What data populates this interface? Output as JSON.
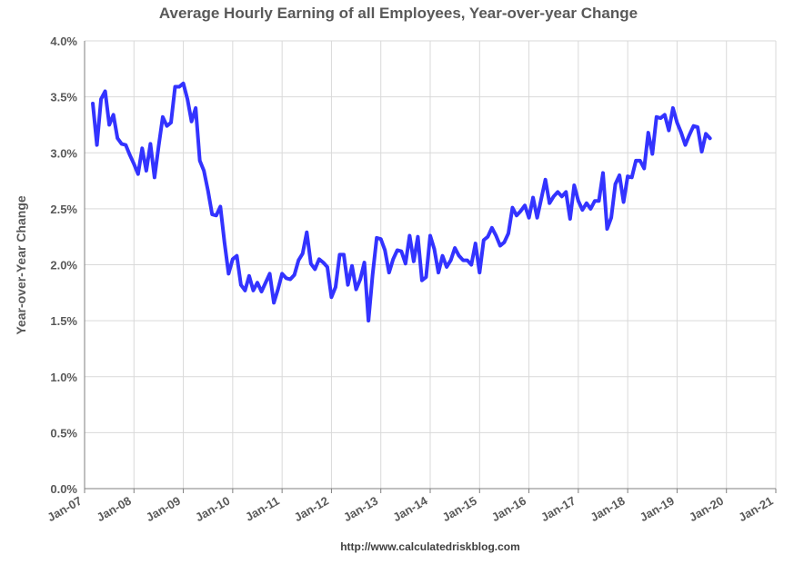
{
  "chart_data": {
    "type": "line",
    "title": "Average Hourly Earning of all Employees, Year-over-year Change",
    "ylabel": "Year-over-Year Change",
    "xlabel": "",
    "source": "http://www.calculatedriskblog.com",
    "x_ticks": [
      "Jan-07",
      "Jan-08",
      "Jan-09",
      "Jan-10",
      "Jan-11",
      "Jan-12",
      "Jan-13",
      "Jan-14",
      "Jan-15",
      "Jan-16",
      "Jan-17",
      "Jan-18",
      "Jan-19",
      "Jan-20",
      "Jan-21"
    ],
    "y_ticks": [
      "0.0%",
      "0.5%",
      "1.0%",
      "1.5%",
      "2.0%",
      "2.5%",
      "3.0%",
      "3.5%",
      "4.0%"
    ],
    "ylim": [
      0,
      4.0
    ],
    "xlim": [
      "2007-01",
      "2021-01"
    ],
    "grid": true,
    "colors": {
      "line": "#3333ff",
      "grid": "#d9d9d9",
      "axis": "#7f7f7f"
    },
    "series": [
      {
        "x_start": "2007-03",
        "frequency": "monthly",
        "values": [
          3.44,
          3.07,
          3.48,
          3.55,
          3.25,
          3.34,
          3.13,
          3.08,
          3.07,
          2.98,
          2.9,
          2.81,
          3.04,
          2.84,
          3.08,
          2.78,
          3.06,
          3.32,
          3.24,
          3.27,
          3.59,
          3.59,
          3.62,
          3.48,
          3.28,
          3.4,
          2.93,
          2.84,
          2.66,
          2.45,
          2.44,
          2.52,
          2.2,
          1.92,
          2.05,
          2.08,
          1.82,
          1.77,
          1.9,
          1.77,
          1.84,
          1.76,
          1.84,
          1.92,
          1.66,
          1.78,
          1.92,
          1.88,
          1.87,
          1.91,
          2.04,
          2.1,
          2.29,
          2.01,
          1.96,
          2.05,
          2.02,
          1.98,
          1.71,
          1.8,
          2.09,
          2.09,
          1.82,
          1.99,
          1.78,
          1.87,
          2.02,
          1.5,
          1.91,
          2.24,
          2.23,
          2.13,
          1.93,
          2.05,
          2.13,
          2.12,
          2.01,
          2.26,
          2.03,
          2.25,
          1.86,
          1.89,
          2.26,
          2.14,
          1.93,
          2.08,
          1.98,
          2.04,
          2.15,
          2.08,
          2.04,
          2.04,
          2.0,
          2.19,
          1.93,
          2.22,
          2.25,
          2.33,
          2.26,
          2.17,
          2.2,
          2.28,
          2.51,
          2.44,
          2.48,
          2.53,
          2.42,
          2.6,
          2.42,
          2.59,
          2.76,
          2.55,
          2.61,
          2.65,
          2.61,
          2.65,
          2.41,
          2.71,
          2.57,
          2.49,
          2.55,
          2.5,
          2.57,
          2.57,
          2.82,
          2.32,
          2.42,
          2.72,
          2.8,
          2.56,
          2.79,
          2.78,
          2.93,
          2.93,
          2.86,
          3.18,
          2.99,
          3.32,
          3.31,
          3.34,
          3.2,
          3.4,
          3.27,
          3.18,
          3.07,
          3.16,
          3.24,
          3.23,
          3.01,
          3.17,
          3.13
        ]
      }
    ]
  }
}
